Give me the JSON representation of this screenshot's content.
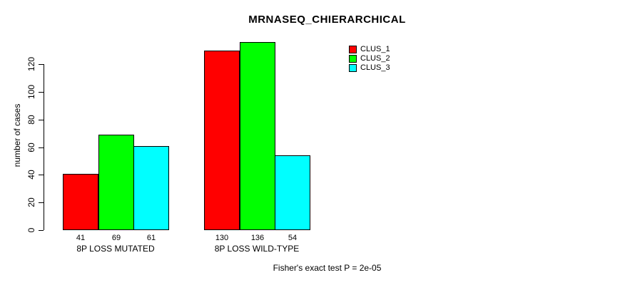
{
  "title": "MRNASEQ_CHIERARCHICAL",
  "footer": "Fisher's exact test P = 2e-05",
  "colors": {
    "clus_1": "#FF0000",
    "clus_2": "#00FF00",
    "clus_3": "#00FFFF",
    "axis": "#000000",
    "background": "#FFFFFF"
  },
  "chart_data": {
    "type": "bar",
    "title": "MRNASEQ_CHIERARCHICAL",
    "xlabel": "",
    "ylabel": "number of cases",
    "categories": [
      "8P LOSS MUTATED",
      "8P LOSS WILD-TYPE"
    ],
    "series": [
      {
        "name": "CLUS_1",
        "color": "#FF0000",
        "values": [
          41,
          130
        ]
      },
      {
        "name": "CLUS_2",
        "color": "#00FF00",
        "values": [
          69,
          136
        ]
      },
      {
        "name": "CLUS_3",
        "color": "#00FFFF",
        "values": [
          61,
          54
        ]
      }
    ],
    "yticks": [
      0,
      20,
      40,
      60,
      80,
      100,
      120
    ],
    "ylim": [
      0,
      136
    ],
    "grid": false,
    "legend_position": "top-right",
    "bar_value_labels": [
      [
        41,
        69,
        61
      ],
      [
        130,
        136,
        54
      ]
    ],
    "annotation": "Fisher's exact test P = 2e-05"
  }
}
